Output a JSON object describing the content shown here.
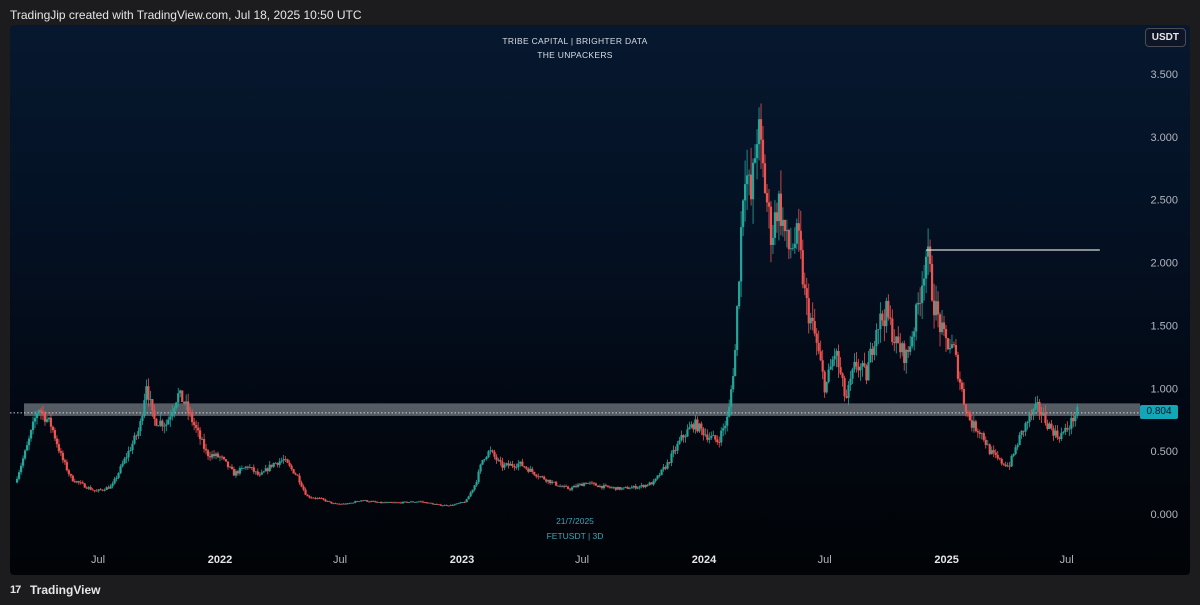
{
  "header": {
    "credit": "TradingJip created with TradingView.com, Jul 18, 2025 10:50 UTC"
  },
  "footer": {
    "logo_icon": "17",
    "brand": "TradingView"
  },
  "watermark": {
    "line1": "TRIBE CAPITAL | BRIGHTER DATA",
    "line2": "THE UNPACKERS"
  },
  "chart_note": {
    "date": "21/7/2025",
    "symbol": "FETUSDT | 3D"
  },
  "currency_button": "USDT",
  "current_price_label": "0.804",
  "colors": {
    "up": "#26a69a",
    "down": "#ef5350",
    "support_zone": "#9aa0a6",
    "resistance_line": "#d8d8d8",
    "price_tag": "#11a7b6"
  },
  "chart_data": {
    "type": "candlestick",
    "symbol": "FETUSDT",
    "timeframe": "3D",
    "y_axis": {
      "ticks": [
        "3.500",
        "3.000",
        "2.500",
        "2.000",
        "1.500",
        "1.000",
        "0.500",
        "0.000"
      ],
      "range": [
        -0.1,
        3.95
      ]
    },
    "x_axis": {
      "ticks": [
        {
          "label": "Jul",
          "date": "2021-07-01",
          "bold": false
        },
        {
          "label": "2022",
          "date": "2022-01-01",
          "bold": true
        },
        {
          "label": "Jul",
          "date": "2022-07-01",
          "bold": false
        },
        {
          "label": "2023",
          "date": "2023-01-01",
          "bold": true
        },
        {
          "label": "Jul",
          "date": "2023-07-01",
          "bold": false
        },
        {
          "label": "2024",
          "date": "2024-01-01",
          "bold": true
        },
        {
          "label": "Jul",
          "date": "2024-07-01",
          "bold": false
        },
        {
          "label": "2025",
          "date": "2025-01-01",
          "bold": true
        },
        {
          "label": "Jul",
          "date": "2025-07-01",
          "bold": false
        }
      ]
    },
    "current_price": 0.804,
    "support_zone": {
      "low": 0.78,
      "high": 0.88
    },
    "resistance_line": {
      "value": 2.1,
      "from": "2024-12-01",
      "to": "2025-08-20"
    },
    "price_path": [
      [
        "2021-03-01",
        0.25
      ],
      [
        "2021-03-20",
        0.55
      ],
      [
        "2021-04-05",
        0.85
      ],
      [
        "2021-04-25",
        0.7
      ],
      [
        "2021-05-10",
        0.45
      ],
      [
        "2021-05-25",
        0.28
      ],
      [
        "2021-06-15",
        0.22
      ],
      [
        "2021-07-01",
        0.18
      ],
      [
        "2021-07-25",
        0.22
      ],
      [
        "2021-08-15",
        0.45
      ],
      [
        "2021-09-05",
        0.68
      ],
      [
        "2021-09-15",
        1.05
      ],
      [
        "2021-09-25",
        0.75
      ],
      [
        "2021-10-15",
        0.72
      ],
      [
        "2021-11-01",
        0.95
      ],
      [
        "2021-11-10",
        0.9
      ],
      [
        "2021-11-25",
        0.72
      ],
      [
        "2021-12-15",
        0.48
      ],
      [
        "2022-01-05",
        0.45
      ],
      [
        "2022-01-25",
        0.32
      ],
      [
        "2022-02-15",
        0.38
      ],
      [
        "2022-03-05",
        0.3
      ],
      [
        "2022-03-25",
        0.4
      ],
      [
        "2022-04-10",
        0.43
      ],
      [
        "2022-05-01",
        0.3
      ],
      [
        "2022-05-15",
        0.14
      ],
      [
        "2022-06-05",
        0.12
      ],
      [
        "2022-06-25",
        0.08
      ],
      [
        "2022-07-15",
        0.08
      ],
      [
        "2022-08-05",
        0.11
      ],
      [
        "2022-09-01",
        0.09
      ],
      [
        "2022-10-01",
        0.09
      ],
      [
        "2022-11-01",
        0.1
      ],
      [
        "2022-12-01",
        0.07
      ],
      [
        "2022-12-20",
        0.07
      ],
      [
        "2023-01-10",
        0.1
      ],
      [
        "2023-01-25",
        0.25
      ],
      [
        "2023-02-05",
        0.45
      ],
      [
        "2023-02-15",
        0.5
      ],
      [
        "2023-03-05",
        0.38
      ],
      [
        "2023-04-01",
        0.4
      ],
      [
        "2023-05-01",
        0.3
      ],
      [
        "2023-06-01",
        0.22
      ],
      [
        "2023-06-15",
        0.2
      ],
      [
        "2023-07-10",
        0.25
      ],
      [
        "2023-08-01",
        0.22
      ],
      [
        "2023-09-01",
        0.2
      ],
      [
        "2023-10-01",
        0.22
      ],
      [
        "2023-10-20",
        0.25
      ],
      [
        "2023-11-10",
        0.4
      ],
      [
        "2023-12-01",
        0.6
      ],
      [
        "2023-12-20",
        0.72
      ],
      [
        "2024-01-10",
        0.62
      ],
      [
        "2024-01-25",
        0.58
      ],
      [
        "2024-02-10",
        0.78
      ],
      [
        "2024-02-20",
        1.3
      ],
      [
        "2024-03-05",
        2.8
      ],
      [
        "2024-03-15",
        2.5
      ],
      [
        "2024-03-25",
        3.1
      ],
      [
        "2024-04-05",
        2.6
      ],
      [
        "2024-04-15",
        2.2
      ],
      [
        "2024-04-25",
        2.5
      ],
      [
        "2024-05-10",
        2.1
      ],
      [
        "2024-05-25",
        2.2
      ],
      [
        "2024-06-05",
        1.7
      ],
      [
        "2024-06-20",
        1.4
      ],
      [
        "2024-07-05",
        1.0
      ],
      [
        "2024-07-20",
        1.3
      ],
      [
        "2024-08-05",
        0.9
      ],
      [
        "2024-08-20",
        1.2
      ],
      [
        "2024-09-05",
        1.1
      ],
      [
        "2024-09-20",
        1.5
      ],
      [
        "2024-10-05",
        1.6
      ],
      [
        "2024-10-20",
        1.35
      ],
      [
        "2024-11-05",
        1.25
      ],
      [
        "2024-11-20",
        1.6
      ],
      [
        "2024-12-05",
        2.1
      ],
      [
        "2024-12-15",
        1.7
      ],
      [
        "2024-12-30",
        1.4
      ],
      [
        "2025-01-15",
        1.3
      ],
      [
        "2025-01-30",
        0.9
      ],
      [
        "2025-02-10",
        0.72
      ],
      [
        "2025-02-25",
        0.65
      ],
      [
        "2025-03-10",
        0.5
      ],
      [
        "2025-03-25",
        0.42
      ],
      [
        "2025-04-08",
        0.38
      ],
      [
        "2025-04-25",
        0.62
      ],
      [
        "2025-05-10",
        0.78
      ],
      [
        "2025-05-22",
        0.85
      ],
      [
        "2025-06-05",
        0.72
      ],
      [
        "2025-06-20",
        0.62
      ],
      [
        "2025-07-01",
        0.65
      ],
      [
        "2025-07-10",
        0.72
      ],
      [
        "2025-07-18",
        0.804
      ]
    ]
  }
}
